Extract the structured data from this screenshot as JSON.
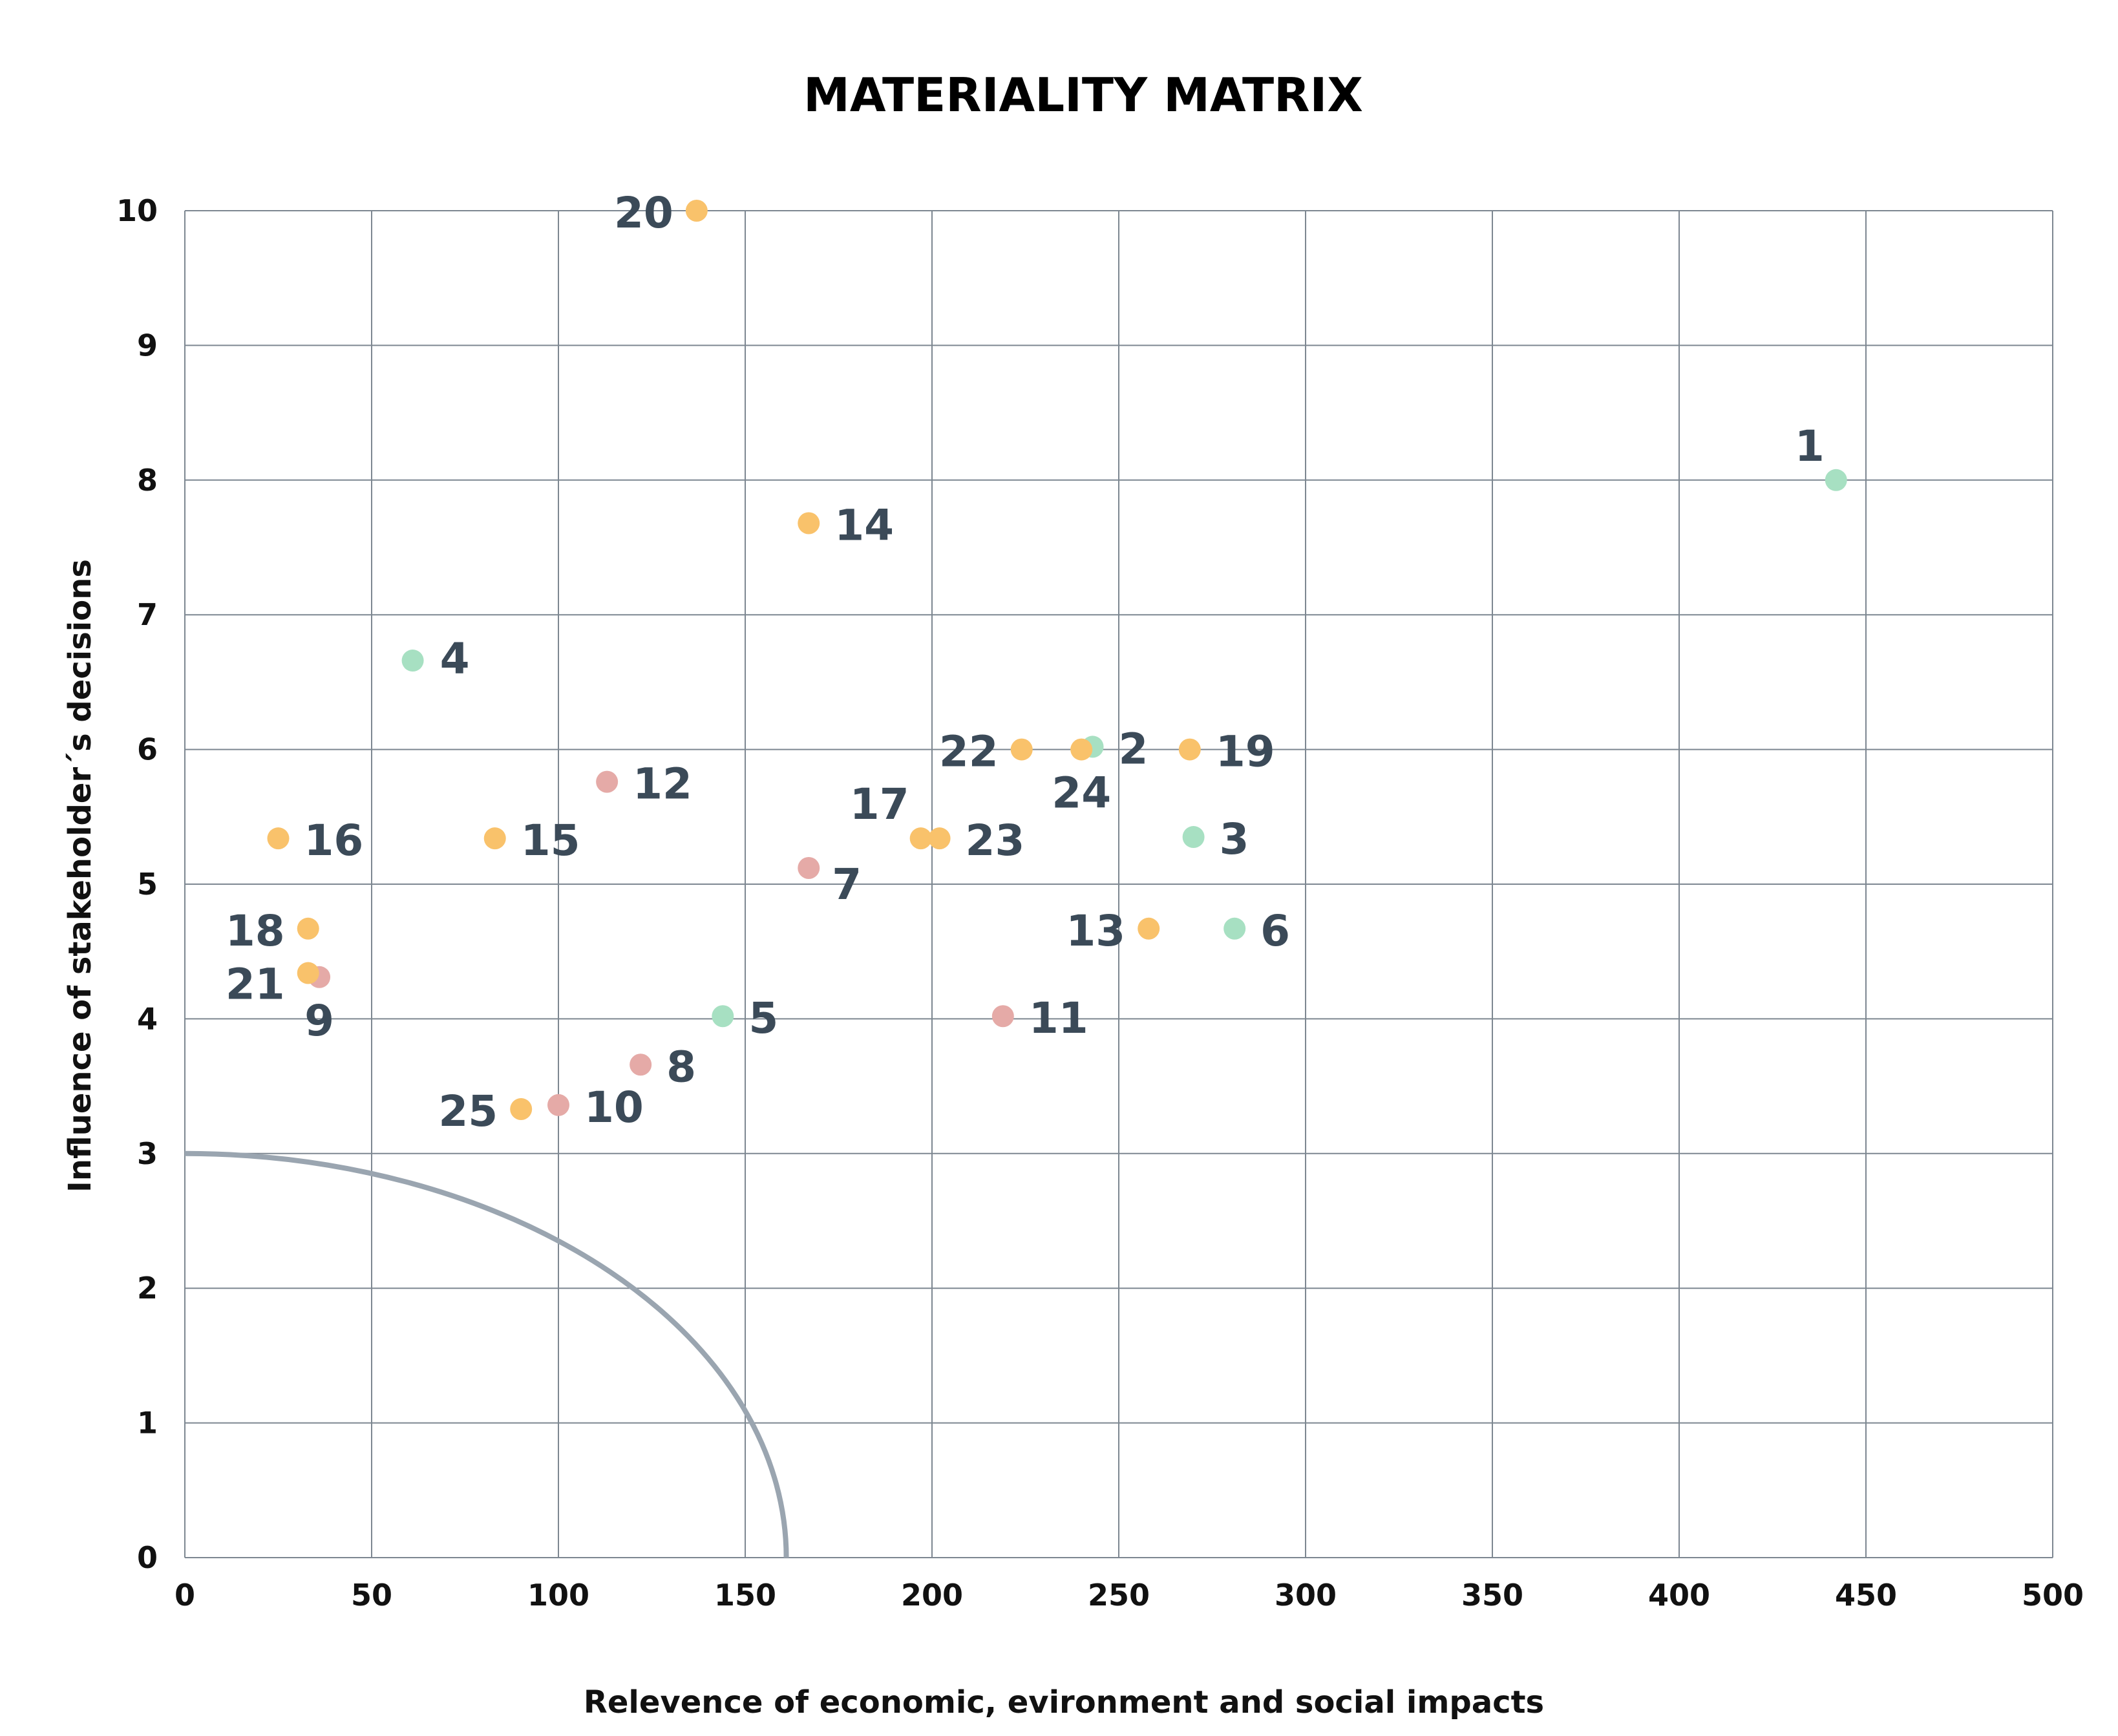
{
  "chart_data": {
    "type": "scatter",
    "title": "MATERIALITY MATRIX",
    "xlabel": "Relevence of economic, evironment and social impacts",
    "ylabel": "Influence of stakeholder´s decisions",
    "xlim": [
      0,
      500
    ],
    "ylim": [
      0,
      10
    ],
    "x_ticks": [
      "0",
      "50",
      "100",
      "150",
      "200",
      "250",
      "300",
      "350",
      "400",
      "450",
      "500"
    ],
    "y_ticks": [
      "0",
      "1",
      "2",
      "3",
      "4",
      "5",
      "6",
      "7",
      "8",
      "9",
      "10"
    ],
    "grid": true,
    "threshold_curve": {
      "x_intercept": 161,
      "y_intercept": 3,
      "color": "#9aa5b0"
    },
    "category_colors": {
      "green": "#a7e0c2",
      "orange": "#f9c26b",
      "pink": "#e5aaa7"
    },
    "points": [
      {
        "label": "1",
        "x": 442,
        "y": 8.0,
        "category": "green",
        "label_pos": "above-left"
      },
      {
        "label": "2",
        "x": 243,
        "y": 6.02,
        "category": "green",
        "label_pos": "right"
      },
      {
        "label": "3",
        "x": 270,
        "y": 5.35,
        "category": "green",
        "label_pos": "right"
      },
      {
        "label": "4",
        "x": 61,
        "y": 6.66,
        "category": "green",
        "label_pos": "right-far"
      },
      {
        "label": "5",
        "x": 144,
        "y": 4.02,
        "category": "green",
        "label_pos": "right"
      },
      {
        "label": "6",
        "x": 281,
        "y": 4.67,
        "category": "green",
        "label_pos": "right"
      },
      {
        "label": "7",
        "x": 167,
        "y": 5.12,
        "category": "pink",
        "label_pos": "right-low"
      },
      {
        "label": "8",
        "x": 122,
        "y": 3.66,
        "category": "pink",
        "label_pos": "right"
      },
      {
        "label": "9",
        "x": 36,
        "y": 4.31,
        "category": "pink",
        "label_pos": "below"
      },
      {
        "label": "10",
        "x": 100,
        "y": 3.36,
        "category": "pink",
        "label_pos": "right"
      },
      {
        "label": "11",
        "x": 219,
        "y": 4.02,
        "category": "pink",
        "label_pos": "right"
      },
      {
        "label": "12",
        "x": 113,
        "y": 5.76,
        "category": "pink",
        "label_pos": "right"
      },
      {
        "label": "13",
        "x": 258,
        "y": 4.67,
        "category": "orange",
        "label_pos": "left"
      },
      {
        "label": "14",
        "x": 167,
        "y": 7.68,
        "category": "orange",
        "label_pos": "right"
      },
      {
        "label": "15",
        "x": 83,
        "y": 5.34,
        "category": "orange",
        "label_pos": "right"
      },
      {
        "label": "16",
        "x": 25,
        "y": 5.34,
        "category": "orange",
        "label_pos": "right"
      },
      {
        "label": "17",
        "x": 197,
        "y": 5.34,
        "category": "orange",
        "label_pos": "above-left"
      },
      {
        "label": "18",
        "x": 33,
        "y": 4.67,
        "category": "orange",
        "label_pos": "left"
      },
      {
        "label": "19",
        "x": 269,
        "y": 6.0,
        "category": "orange",
        "label_pos": "right"
      },
      {
        "label": "20",
        "x": 137,
        "y": 10.0,
        "category": "orange",
        "label_pos": "left"
      },
      {
        "label": "21",
        "x": 33,
        "y": 4.34,
        "category": "orange",
        "label_pos": "left-low"
      },
      {
        "label": "22",
        "x": 224,
        "y": 6.0,
        "category": "orange",
        "label_pos": "left"
      },
      {
        "label": "23",
        "x": 202,
        "y": 5.34,
        "category": "orange",
        "label_pos": "right"
      },
      {
        "label": "24",
        "x": 240,
        "y": 6.0,
        "category": "orange",
        "label_pos": "below"
      },
      {
        "label": "25",
        "x": 90,
        "y": 3.33,
        "category": "orange",
        "label_pos": "left"
      }
    ]
  }
}
